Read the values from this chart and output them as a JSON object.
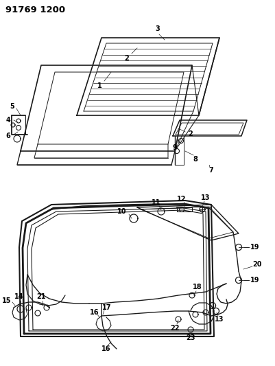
{
  "title": "91769 1200",
  "bg_color": "#ffffff",
  "line_color": "#1a1a1a",
  "title_fontsize": 9.5,
  "label_fontsize": 7,
  "fig_width": 4.01,
  "fig_height": 5.33,
  "dpi": 100
}
